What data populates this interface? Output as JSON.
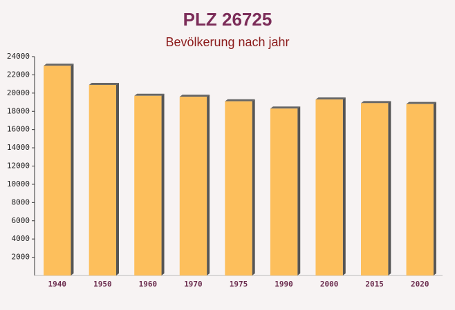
{
  "chart_data": {
    "type": "bar",
    "title": "PLZ 26725",
    "subtitle": "Bevölkerung nach jahr",
    "categories": [
      "1940",
      "1950",
      "1960",
      "1970",
      "1975",
      "1990",
      "2000",
      "2015",
      "2020"
    ],
    "values": [
      23000,
      20900,
      19700,
      19600,
      19100,
      18300,
      19300,
      18900,
      18800
    ],
    "color": "#fdbf5c",
    "ylim": [
      0,
      24000
    ],
    "yticks": [
      2000,
      4000,
      6000,
      8000,
      10000,
      12000,
      14000,
      16000,
      18000,
      20000,
      22000,
      24000
    ],
    "grid": false
  }
}
